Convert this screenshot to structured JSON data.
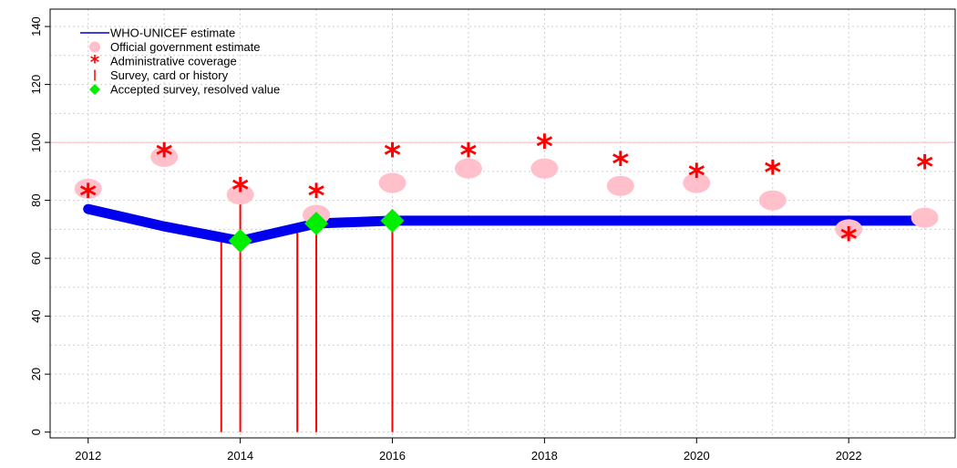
{
  "chart_data": {
    "type": "line",
    "title": "",
    "xlabel": "",
    "ylabel": "",
    "xlim": [
      2011.5,
      2023.4
    ],
    "ylim": [
      -2,
      146
    ],
    "grid": true,
    "legend_position": "top-left",
    "x_ticks": [
      "2012",
      "2014",
      "2016",
      "2018",
      "2020",
      "2022"
    ],
    "y_ticks": [
      "0",
      "20",
      "40",
      "60",
      "80",
      "100",
      "120",
      "140"
    ],
    "reference_line": {
      "y": 100,
      "color": "#ffb6c1"
    },
    "legend": [
      {
        "label": "WHO-UNICEF estimate",
        "symbol": "line",
        "color": "#0000cc"
      },
      {
        "label": "Official government estimate",
        "symbol": "circle",
        "color": "#ffc0cb"
      },
      {
        "label": "Administrative coverage",
        "symbol": "asterisk",
        "color": "#ff0000"
      },
      {
        "label": "Survey, card or history",
        "symbol": "bar",
        "color": "#ff0000"
      },
      {
        "label": "Accepted survey, resolved value",
        "symbol": "diamond",
        "color": "#00ee00"
      }
    ],
    "series": [
      {
        "name": "WHO-UNICEF estimate",
        "color": "#0000ee",
        "x": [
          2012,
          2013,
          2014,
          2015,
          2016,
          2017,
          2018,
          2019,
          2020,
          2021,
          2022,
          2023
        ],
        "y": [
          77,
          71,
          66,
          72,
          73,
          73,
          73,
          73,
          73,
          73,
          73,
          73
        ]
      },
      {
        "name": "Official government estimate",
        "color": "#ffc0cb",
        "x": [
          2012,
          2013,
          2014,
          2015,
          2016,
          2017,
          2018,
          2019,
          2020,
          2021,
          2022,
          2023
        ],
        "y": [
          84,
          95,
          82,
          75,
          86,
          91,
          91,
          85,
          86,
          80,
          70,
          74
        ]
      },
      {
        "name": "Administrative coverage",
        "color": "#ff0000",
        "x": [
          2012,
          2013,
          2014,
          2015,
          2016,
          2017,
          2018,
          2019,
          2020,
          2021,
          2022,
          2023
        ],
        "y": [
          83,
          97,
          85,
          83,
          97,
          97,
          100,
          94,
          90,
          91,
          68,
          93
        ]
      },
      {
        "name": "Survey, card or history",
        "color": "#ff0000",
        "x": [
          2013.75,
          2014,
          2014.75,
          2015,
          2016
        ],
        "y": [
          66,
          85,
          71,
          72,
          73
        ]
      },
      {
        "name": "Accepted survey, resolved value",
        "color": "#00ee00",
        "x": [
          2014,
          2015,
          2016
        ],
        "y": [
          66,
          72,
          73
        ]
      }
    ]
  }
}
